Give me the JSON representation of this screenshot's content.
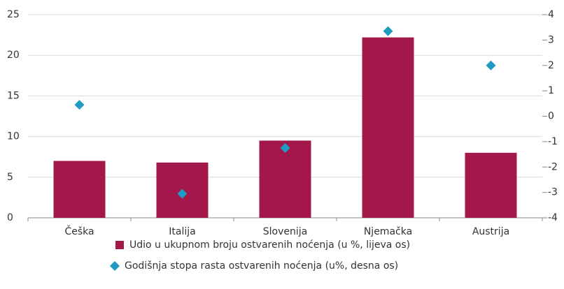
{
  "chart_data": {
    "type": "bar",
    "categories": [
      "Češka",
      "Italija",
      "Slovenija",
      "Njemačka",
      "Austrija"
    ],
    "series": [
      {
        "name": "Udio u ukupnom broju ostvarenih noćenja (u %, lijeva os)",
        "color": "#a3174b",
        "type": "bar",
        "values": [
          7.0,
          6.8,
          9.5,
          22.2,
          8.0
        ]
      },
      {
        "name": "Godišnja stopa rasta ostvarenih noćenja (u%, desna os)",
        "color": "#1f9bc4",
        "type": "scatter",
        "axis": "y2",
        "values": [
          0.45,
          -3.05,
          -1.25,
          3.35,
          2.0
        ]
      }
    ],
    "ylim": [
      0,
      25
    ],
    "yticks": [
      0,
      5,
      10,
      15,
      20,
      25
    ],
    "y2lim": [
      -4,
      4
    ],
    "y2ticks": [
      -4,
      -3,
      -2,
      -1,
      0,
      1,
      2,
      3,
      4
    ],
    "grid": true
  }
}
